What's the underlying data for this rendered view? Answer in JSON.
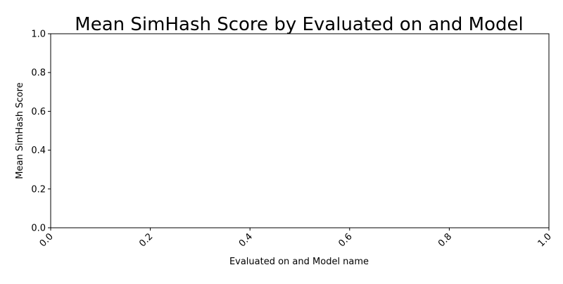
{
  "chart_data": {
    "type": "bar",
    "title": "Mean SimHash Score by Evaluated on and Model",
    "xlabel": "Evaluated on and Model name",
    "ylabel": "Mean SimHash Score",
    "categories": [],
    "values": [],
    "xlim": [
      0.0,
      1.0
    ],
    "ylim": [
      0.0,
      1.0
    ],
    "x_ticks": [
      "0.0",
      "0.2",
      "0.4",
      "0.6",
      "0.8",
      "1.0"
    ],
    "y_ticks": [
      "0.0",
      "0.2",
      "0.4",
      "0.6",
      "0.8",
      "1.0"
    ],
    "x_tick_rotation": 45,
    "grid": false,
    "legend": "none"
  }
}
